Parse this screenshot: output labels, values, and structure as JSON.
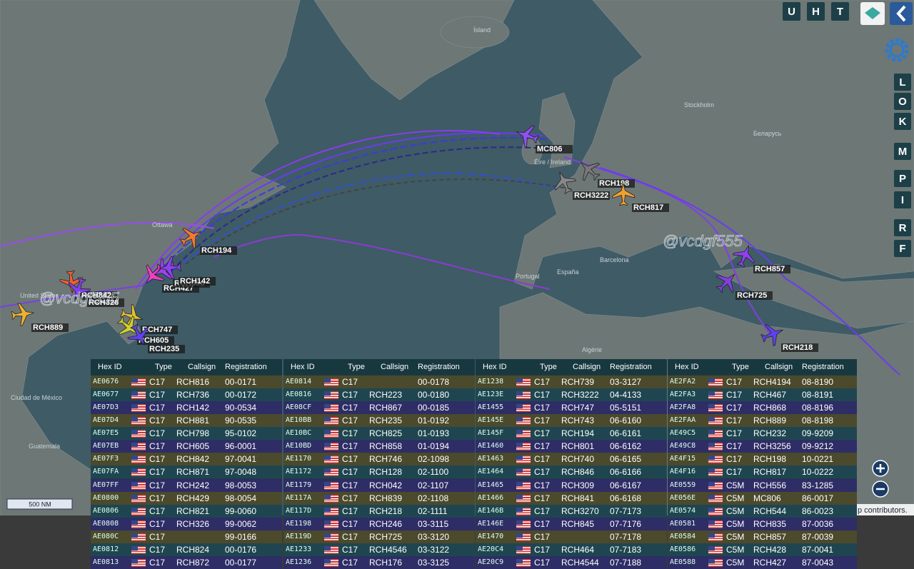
{
  "toolbar": {
    "top_buttons": [
      "U",
      "H",
      "T"
    ],
    "side_buttons": [
      "L",
      "O",
      "K",
      "M",
      "P",
      "I",
      "R",
      "F"
    ]
  },
  "map": {
    "place_labels": [
      "Ísland",
      "Stockholm",
      "Беларусь",
      "Éire / Ireland",
      "Portugal",
      "España",
      "Barcelona",
      "Algérie",
      "United States",
      "Ottawa",
      "Ciudad de México",
      "Guatemala"
    ],
    "aircraft_labels": [
      "RCH194",
      "RCH889",
      "RCH747",
      "RCH605",
      "RCH235",
      "RCH842",
      "RCH326",
      "RCH427",
      "RCH556",
      "RCH142",
      "MC806",
      "RCH198",
      "RCH3222",
      "RCH817",
      "RCH857",
      "RCH725",
      "RCH218"
    ],
    "watermark": "@vcdgf555",
    "scale": "500 NM",
    "attribution": "p contributors."
  },
  "table": {
    "columns": [
      "Hex ID",
      "Type",
      "Callsign",
      "Registration"
    ],
    "groups": [
      [
        [
          "AE0676",
          "C17",
          "RCH816",
          "00-0171"
        ],
        [
          "AE0677",
          "C17",
          "RCH736",
          "00-0172"
        ],
        [
          "AE07D3",
          "C17",
          "RCH142",
          "90-0534"
        ],
        [
          "AE07D4",
          "C17",
          "RCH881",
          "90-0535"
        ],
        [
          "AE07E5",
          "C17",
          "RCH798",
          "95-0102"
        ],
        [
          "AE07EB",
          "C17",
          "RCH605",
          "96-0001"
        ],
        [
          "AE07F3",
          "C17",
          "RCH842",
          "97-0041"
        ],
        [
          "AE07FA",
          "C17",
          "RCH871",
          "97-0048"
        ],
        [
          "AE07FF",
          "C17",
          "RCH242",
          "98-0053"
        ],
        [
          "AE0800",
          "C17",
          "RCH429",
          "98-0054"
        ],
        [
          "AE0806",
          "C17",
          "RCH821",
          "99-0060"
        ],
        [
          "AE0808",
          "C17",
          "RCH326",
          "99-0062"
        ],
        [
          "AE080C",
          "C17",
          null,
          "99-0166"
        ],
        [
          "AE0812",
          "C17",
          "RCH824",
          "00-0176"
        ],
        [
          "AE0813",
          "C17",
          "RCH872",
          "00-0177"
        ]
      ],
      [
        [
          "AE0814",
          "C17",
          null,
          "00-0178"
        ],
        [
          "AE0816",
          "C17",
          "RCH223",
          "00-0180"
        ],
        [
          "AE08CF",
          "C17",
          "RCH867",
          "00-0185"
        ],
        [
          "AE10BB",
          "C17",
          "RCH235",
          "01-0192"
        ],
        [
          "AE10BC",
          "C17",
          "RCH825",
          "01-0193"
        ],
        [
          "AE10BD",
          "C17",
          "RCH858",
          "01-0194"
        ],
        [
          "AE1170",
          "C17",
          "RCH746",
          "02-1098"
        ],
        [
          "AE1172",
          "C17",
          "RCH128",
          "02-1100"
        ],
        [
          "AE1179",
          "C17",
          "RCH042",
          "02-1107"
        ],
        [
          "AE117A",
          "C17",
          "RCH839",
          "02-1108"
        ],
        [
          "AE117D",
          "C17",
          "RCH218",
          "02-1111"
        ],
        [
          "AE1198",
          "C17",
          "RCH246",
          "03-3115"
        ],
        [
          "AE119D",
          "C17",
          "RCH725",
          "03-3120"
        ],
        [
          "AE1233",
          "C17",
          "RCH4546",
          "03-3122"
        ],
        [
          "AE1236",
          "C17",
          "RCH176",
          "03-3125"
        ]
      ],
      [
        [
          "AE1238",
          "C17",
          "RCH739",
          "03-3127"
        ],
        [
          "AE123E",
          "C17",
          "RCH3222",
          "04-4133"
        ],
        [
          "AE1455",
          "C17",
          "RCH747",
          "05-5151"
        ],
        [
          "AE145E",
          "C17",
          "RCH743",
          "06-6160"
        ],
        [
          "AE145F",
          "C17",
          "RCH194",
          "06-6161"
        ],
        [
          "AE1460",
          "C17",
          "RCH801",
          "06-6162"
        ],
        [
          "AE1463",
          "C17",
          "RCH740",
          "06-6165"
        ],
        [
          "AE1464",
          "C17",
          "RCH846",
          "06-6166"
        ],
        [
          "AE1465",
          "C17",
          "RCH309",
          "06-6167"
        ],
        [
          "AE1466",
          "C17",
          "RCH841",
          "06-6168"
        ],
        [
          "AE146B",
          "C17",
          "RCH3270",
          "07-7173"
        ],
        [
          "AE146E",
          "C17",
          "RCH845",
          "07-7176"
        ],
        [
          "AE1470",
          "C17",
          null,
          "07-7178"
        ],
        [
          "AE20C4",
          "C17",
          "RCH464",
          "07-7183"
        ],
        [
          "AE20C9",
          "C17",
          "RCH4544",
          "07-7188"
        ]
      ],
      [
        [
          "AE2FA2",
          "C17",
          "RCH4194",
          "08-8190"
        ],
        [
          "AE2FA3",
          "C17",
          "RCH467",
          "08-8191"
        ],
        [
          "AE2FA8",
          "C17",
          "RCH868",
          "08-8196"
        ],
        [
          "AE2FAA",
          "C17",
          "RCH889",
          "08-8198"
        ],
        [
          "AE49C5",
          "C17",
          "RCH232",
          "09-9209"
        ],
        [
          "AE49C8",
          "C17",
          "RCH3256",
          "09-9212"
        ],
        [
          "AE4F15",
          "C17",
          "RCH198",
          "10-0221"
        ],
        [
          "AE4F16",
          "C17",
          "RCH817",
          "10-0222"
        ],
        [
          "AE0559",
          "C5M",
          "RCH556",
          "83-1285"
        ],
        [
          "AE056E",
          "C5M",
          "MC806",
          "86-0017"
        ],
        [
          "AE0574",
          "C5M",
          "RCH544",
          "86-0023"
        ],
        [
          "AE0581",
          "C5M",
          "RCH835",
          "87-0036"
        ],
        [
          "AE0584",
          "C5M",
          "RCH857",
          "87-0039"
        ],
        [
          "AE0586",
          "C5M",
          "RCH428",
          "87-0041"
        ],
        [
          "AE0588",
          "C5M",
          "RCH427",
          "87-0043"
        ]
      ]
    ]
  }
}
